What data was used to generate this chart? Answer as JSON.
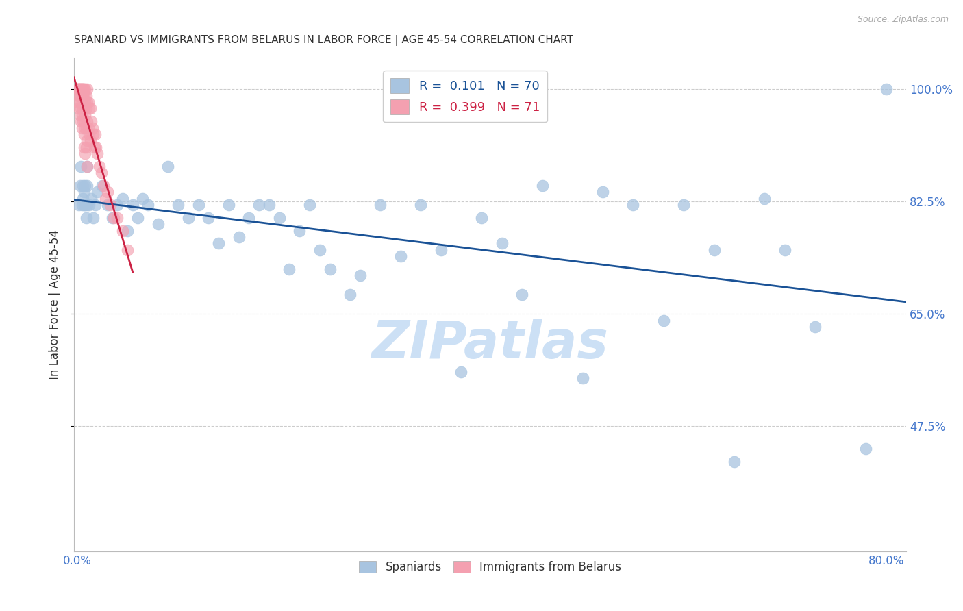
{
  "title": "SPANIARD VS IMMIGRANTS FROM BELARUS IN LABOR FORCE | AGE 45-54 CORRELATION CHART",
  "source": "Source: ZipAtlas.com",
  "ylabel": "In Labor Force | Age 45-54",
  "ymin": 0.28,
  "ymax": 1.05,
  "xmin": -0.003,
  "xmax": 0.82,
  "legend_blue_r": "0.101",
  "legend_blue_n": "70",
  "legend_pink_r": "0.399",
  "legend_pink_n": "71",
  "blue_color": "#a8c4e0",
  "pink_color": "#f4a0b0",
  "blue_line_color": "#1a5296",
  "pink_line_color": "#cc2244",
  "watermark": "ZIPatlas",
  "watermark_color": "#cce0f5",
  "title_color": "#333333",
  "tick_color": "#4477cc",
  "ytick_vals": [
    0.475,
    0.65,
    0.825,
    1.0
  ],
  "ytick_labels": [
    "47.5%",
    "65.0%",
    "82.5%",
    "100.0%"
  ],
  "blue_scatter_x": [
    0.002,
    0.003,
    0.004,
    0.005,
    0.006,
    0.006,
    0.007,
    0.007,
    0.008,
    0.008,
    0.009,
    0.01,
    0.01,
    0.01,
    0.012,
    0.014,
    0.016,
    0.018,
    0.02,
    0.025,
    0.03,
    0.035,
    0.04,
    0.045,
    0.05,
    0.055,
    0.06,
    0.065,
    0.07,
    0.08,
    0.09,
    0.1,
    0.11,
    0.12,
    0.13,
    0.14,
    0.15,
    0.16,
    0.17,
    0.18,
    0.19,
    0.2,
    0.21,
    0.22,
    0.23,
    0.24,
    0.25,
    0.27,
    0.28,
    0.3,
    0.32,
    0.34,
    0.36,
    0.38,
    0.4,
    0.42,
    0.44,
    0.46,
    0.5,
    0.52,
    0.55,
    0.58,
    0.6,
    0.63,
    0.65,
    0.68,
    0.7,
    0.73,
    0.78,
    0.8
  ],
  "blue_scatter_y": [
    0.82,
    0.85,
    0.88,
    0.82,
    0.83,
    0.85,
    0.82,
    0.84,
    0.82,
    0.85,
    0.8,
    0.82,
    0.85,
    0.88,
    0.82,
    0.83,
    0.8,
    0.82,
    0.84,
    0.85,
    0.82,
    0.8,
    0.82,
    0.83,
    0.78,
    0.82,
    0.8,
    0.83,
    0.82,
    0.79,
    0.88,
    0.82,
    0.8,
    0.82,
    0.8,
    0.76,
    0.82,
    0.77,
    0.8,
    0.82,
    0.82,
    0.8,
    0.72,
    0.78,
    0.82,
    0.75,
    0.72,
    0.68,
    0.71,
    0.82,
    0.74,
    0.82,
    0.75,
    0.56,
    0.8,
    0.76,
    0.68,
    0.85,
    0.55,
    0.84,
    0.82,
    0.64,
    0.82,
    0.75,
    0.42,
    0.83,
    0.75,
    0.63,
    0.44,
    1.0
  ],
  "pink_scatter_x": [
    0.001,
    0.001,
    0.001,
    0.002,
    0.002,
    0.002,
    0.002,
    0.003,
    0.003,
    0.003,
    0.003,
    0.003,
    0.004,
    0.004,
    0.004,
    0.004,
    0.004,
    0.005,
    0.005,
    0.005,
    0.005,
    0.005,
    0.005,
    0.006,
    0.006,
    0.006,
    0.006,
    0.006,
    0.007,
    0.007,
    0.007,
    0.007,
    0.007,
    0.007,
    0.008,
    0.008,
    0.008,
    0.008,
    0.008,
    0.009,
    0.009,
    0.009,
    0.009,
    0.01,
    0.01,
    0.01,
    0.01,
    0.01,
    0.011,
    0.011,
    0.012,
    0.012,
    0.013,
    0.013,
    0.014,
    0.015,
    0.016,
    0.017,
    0.018,
    0.019,
    0.02,
    0.022,
    0.024,
    0.026,
    0.028,
    0.03,
    0.033,
    0.036,
    0.04,
    0.045,
    0.05
  ],
  "pink_scatter_y": [
    1.0,
    1.0,
    0.98,
    1.0,
    1.0,
    0.99,
    0.97,
    1.0,
    1.0,
    0.99,
    0.98,
    0.96,
    1.0,
    1.0,
    0.99,
    0.97,
    0.95,
    1.0,
    1.0,
    0.99,
    0.98,
    0.96,
    0.94,
    1.0,
    1.0,
    0.99,
    0.97,
    0.95,
    1.0,
    0.99,
    0.97,
    0.95,
    0.93,
    0.91,
    1.0,
    0.98,
    0.96,
    0.94,
    0.9,
    0.99,
    0.97,
    0.94,
    0.91,
    1.0,
    0.98,
    0.95,
    0.92,
    0.88,
    0.98,
    0.94,
    0.97,
    0.93,
    0.97,
    0.92,
    0.95,
    0.94,
    0.93,
    0.91,
    0.93,
    0.91,
    0.9,
    0.88,
    0.87,
    0.85,
    0.83,
    0.84,
    0.82,
    0.8,
    0.8,
    0.78,
    0.75
  ]
}
